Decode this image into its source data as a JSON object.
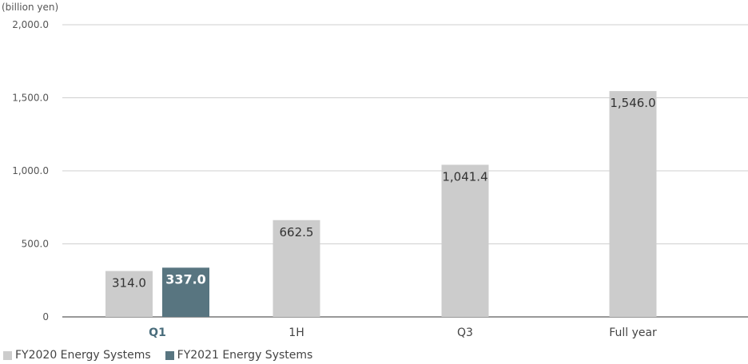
{
  "chart_data": {
    "type": "bar",
    "unit_label": "(billion yen)",
    "categories": [
      "Q1",
      "1H",
      "Q3",
      "Full year"
    ],
    "highlight_category": "Q1",
    "series": [
      {
        "name": "FY2020 Energy Systems",
        "color": "#cccccc",
        "values": [
          314.0,
          662.5,
          1041.4,
          1546.0
        ]
      },
      {
        "name": "FY2021 Energy Systems",
        "color": "#587580",
        "values": [
          337.0,
          null,
          null,
          null
        ]
      }
    ],
    "value_labels": [
      [
        "314.0",
        "662.5",
        "1,041.4",
        "1,546.0"
      ],
      [
        "337.0",
        null,
        null,
        null
      ]
    ],
    "yticks": [
      0,
      500,
      1000,
      1500,
      2000
    ],
    "ytick_labels": [
      "0",
      "500.0",
      "1,000.0",
      "1,500.0",
      "2,000.0"
    ],
    "ylim": [
      0,
      2000
    ],
    "grid": true,
    "legend_position": "bottom-left",
    "highlight_color": "#4a6d7c"
  }
}
